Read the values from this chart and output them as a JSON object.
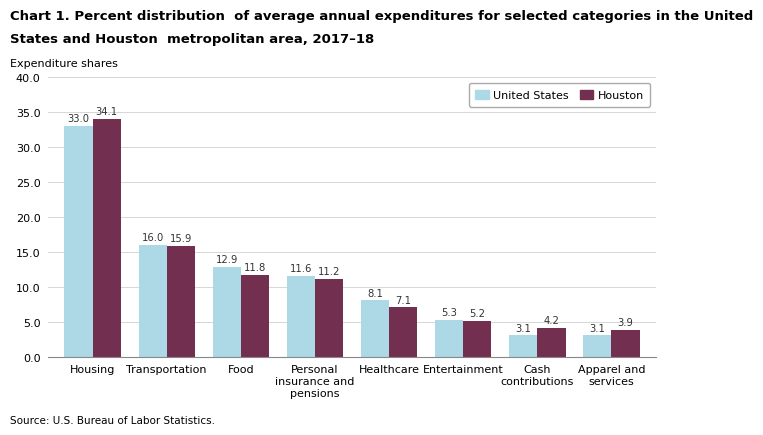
{
  "title_line1": "Chart 1. Percent distribution  of average annual expenditures for selected categories in the United",
  "title_line2": "States and Houston  metropolitan area, 2017–18",
  "sublabel": "Expenditure shares",
  "source": "Source: U.S. Bureau of Labor Statistics.",
  "categories": [
    "Housing",
    "Transportation",
    "Food",
    "Personal\ninsurance and\npensions",
    "Healthcare",
    "Entertainment",
    "Cash\ncontributions",
    "Apparel and\nservices"
  ],
  "us_values": [
    33.0,
    16.0,
    12.9,
    11.6,
    8.1,
    5.3,
    3.1,
    3.1
  ],
  "houston_values": [
    34.1,
    15.9,
    11.8,
    11.2,
    7.1,
    5.2,
    4.2,
    3.9
  ],
  "us_color": "#ADD8E6",
  "houston_color": "#722F4F",
  "ylim": [
    0,
    40.0
  ],
  "yticks": [
    0.0,
    5.0,
    10.0,
    15.0,
    20.0,
    25.0,
    30.0,
    35.0,
    40.0
  ],
  "legend_us": "United States",
  "legend_houston": "Houston",
  "bar_width": 0.38,
  "title_fontsize": 9.5,
  "label_fontsize": 8.0,
  "tick_fontsize": 8.0,
  "value_fontsize": 7.2,
  "sublabel_fontsize": 8.0
}
